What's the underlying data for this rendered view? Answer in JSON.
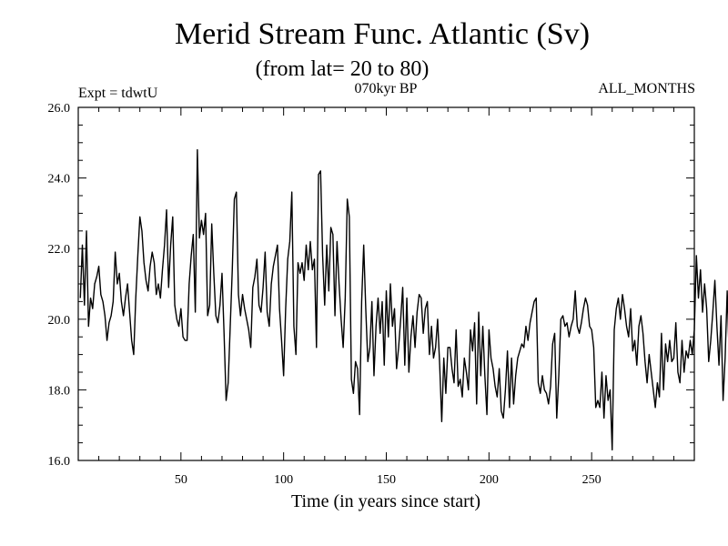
{
  "chart_data": {
    "type": "line",
    "title": "Merid Stream Func. Atlantic (Sv)",
    "subtitle": "(from lat= 20 to 80)",
    "experiment": "Expt = tdwtU",
    "period": "070kyr BP",
    "months": "ALL_MONTHS",
    "xlabel": "Time (in years since start)",
    "ylabel": "",
    "xlim": [
      0,
      300
    ],
    "ylim": [
      16.0,
      26.0
    ],
    "x_ticks": [
      {
        "value": 50,
        "label": "50"
      },
      {
        "value": 100,
        "label": "100"
      },
      {
        "value": 150,
        "label": "150"
      },
      {
        "value": 200,
        "label": "200"
      },
      {
        "value": 250,
        "label": "250"
      }
    ],
    "y_ticks": [
      {
        "value": 16,
        "label": "16.0"
      },
      {
        "value": 18,
        "label": "18.0"
      },
      {
        "value": 20,
        "label": "20.0"
      },
      {
        "value": 22,
        "label": "22.0"
      },
      {
        "value": 24,
        "label": "24.0"
      },
      {
        "value": 26,
        "label": "26.0"
      }
    ],
    "series": [
      {
        "name": "Meridional stream function",
        "x_start": 1,
        "x_step": 1,
        "values": [
          20.6,
          22.1,
          20.4,
          22.5,
          19.8,
          20.6,
          20.3,
          21.0,
          21.2,
          21.5,
          20.7,
          20.5,
          20.1,
          19.4,
          19.9,
          20.1,
          20.5,
          21.9,
          21.0,
          21.3,
          20.5,
          20.1,
          20.6,
          21.0,
          20.2,
          19.4,
          19.0,
          20.6,
          21.8,
          22.9,
          22.5,
          21.6,
          21.1,
          20.8,
          21.5,
          21.9,
          21.6,
          20.7,
          21.0,
          20.6,
          21.4,
          22.1,
          23.1,
          20.9,
          22.1,
          22.9,
          20.4,
          20.0,
          19.8,
          20.3,
          19.5,
          19.4,
          19.4,
          21.0,
          21.8,
          22.4,
          20.2,
          24.8,
          22.3,
          22.8,
          22.4,
          23.0,
          20.1,
          20.4,
          22.7,
          21.3,
          20.1,
          19.9,
          20.4,
          21.3,
          19.6,
          17.7,
          18.2,
          19.8,
          21.4,
          23.4,
          23.6,
          20.7,
          20.1,
          20.7,
          20.3,
          20.0,
          19.7,
          19.2,
          20.9,
          21.2,
          21.7,
          20.4,
          20.2,
          20.9,
          21.9,
          20.2,
          19.8,
          21.0,
          21.5,
          21.8,
          22.1,
          20.3,
          19.4,
          18.4,
          20.3,
          21.7,
          22.2,
          23.6,
          19.8,
          19.0,
          21.6,
          21.3,
          21.6,
          21.1,
          22.1,
          21.4,
          22.2,
          21.4,
          21.7,
          19.2,
          24.1,
          24.2,
          21.8,
          20.4,
          22.1,
          20.8,
          22.6,
          22.4,
          20.1,
          22.2,
          21.0,
          20.0,
          19.2,
          20.6,
          23.4,
          22.9,
          18.3,
          17.9,
          18.8,
          18.6,
          17.3,
          20.5,
          22.1,
          20.3,
          18.8,
          19.2,
          20.5,
          18.4,
          19.8,
          20.6,
          19.6,
          20.5,
          18.7,
          20.8,
          19.5,
          21.0,
          19.8,
          20.3,
          18.6,
          19.2,
          20.0,
          20.9,
          18.7,
          20.6,
          18.5,
          19.5,
          20.1,
          19.2,
          20.2,
          20.7,
          20.6,
          19.6,
          20.3,
          20.5,
          19.0,
          19.8,
          18.9,
          19.2,
          20.0,
          18.7,
          17.1,
          18.9,
          17.9,
          19.2,
          19.2,
          18.6,
          18.2,
          19.7,
          18.1,
          18.3,
          17.8,
          18.9,
          18.5,
          18.0,
          19.7,
          19.1,
          19.9,
          17.6,
          20.2,
          18.4,
          19.8,
          18.4,
          17.3,
          19.7,
          18.9,
          18.6,
          18.1,
          17.8,
          18.6,
          17.4,
          17.2,
          18.0,
          19.1,
          17.5,
          18.9,
          17.6,
          18.4,
          18.9,
          19.1,
          19.3,
          19.2,
          19.8,
          19.4,
          19.9,
          20.2,
          20.5,
          20.6,
          18.2,
          17.9,
          18.4,
          18.0,
          17.9,
          17.6,
          18.1,
          19.3,
          19.6,
          17.2,
          18.4,
          20.0,
          20.1,
          19.8,
          19.9,
          19.5,
          19.8,
          20.0,
          20.8,
          19.8,
          19.6,
          19.9,
          20.3,
          20.6,
          20.4,
          19.8,
          19.7,
          19.2,
          17.5,
          17.7,
          17.5,
          18.5,
          17.2,
          18.4,
          17.7,
          18.0,
          16.3,
          19.7,
          20.3,
          20.6,
          20.0,
          20.7,
          20.3,
          19.8,
          19.5,
          20.3,
          19.1,
          19.4,
          18.7,
          19.8,
          20.1,
          19.6,
          18.8,
          18.2,
          19.0,
          18.5,
          18.0,
          17.5,
          18.2,
          17.8,
          19.6,
          18.0,
          19.3,
          18.8,
          19.4,
          18.8,
          18.9,
          19.9,
          18.5,
          18.2,
          19.4,
          18.5,
          19.1,
          18.9,
          19.4,
          19.0,
          19.7,
          21.8,
          20.6,
          21.4,
          20.2,
          21.0,
          20.3,
          18.8,
          19.4,
          20.2,
          21.1,
          19.8,
          18.7,
          20.1,
          17.7,
          18.9,
          20.8,
          18.9,
          20.3,
          19.2,
          20.4,
          19.6,
          20.9,
          19.6,
          21.7,
          19.1,
          18.4,
          20.5,
          18.3,
          20.2
        ]
      }
    ]
  }
}
